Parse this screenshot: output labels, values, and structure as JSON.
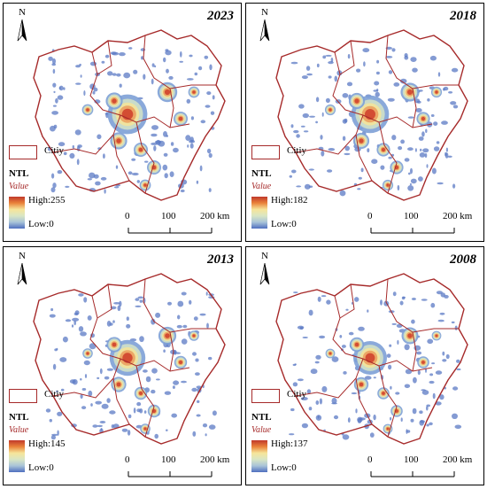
{
  "panels": [
    {
      "year": "2023",
      "high": "High:255",
      "low": "Low:0"
    },
    {
      "year": "2018",
      "high": "High:182",
      "low": "Low:0"
    },
    {
      "year": "2013",
      "high": "High:145",
      "low": "Low:0"
    },
    {
      "year": "2008",
      "high": "High:137",
      "low": "Low:0"
    }
  ],
  "north_label": "N",
  "legend": {
    "city_label": "Citiy",
    "title": "NTL",
    "value_label": "Value",
    "boundary_color": "#a62a2a",
    "ramp_colors": [
      "#c0392b",
      "#e9823a",
      "#f6e59a",
      "#d9e6c4",
      "#a9c4d8",
      "#4f6fbf"
    ]
  },
  "scale_bar": {
    "tick_labels": [
      "0",
      "100",
      "200 km"
    ]
  }
}
